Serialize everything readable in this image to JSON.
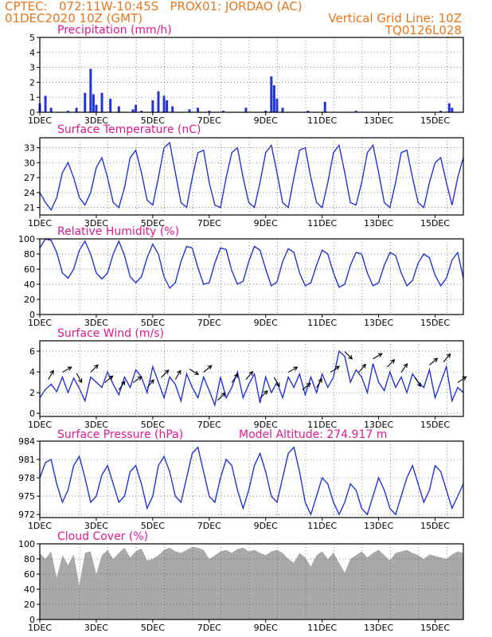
{
  "header": {
    "line1": "CPTEC:   072:11W-10:45S   PROX01: JORDAO (AC)",
    "line2": "01DEC2020 10Z (GMT)",
    "vgrid": "Vertical Grid Line: 10Z",
    "code": "TQ0126L028"
  },
  "colors": {
    "header": "#e8761c",
    "title": "#e0198f",
    "line": "#2233dd",
    "cloud": "#a9a9a9"
  },
  "chart_data": [
    {
      "type": "bar",
      "title": "Precipitation  (mm/h)",
      "x": [
        1.0,
        1.2,
        1.4,
        2.0,
        2.3,
        2.6,
        2.8,
        2.9,
        3.0,
        3.2,
        3.5,
        3.8,
        4.3,
        4.4,
        4.6,
        5.0,
        5.2,
        5.4,
        5.5,
        5.7,
        6.3,
        6.6,
        7.0,
        7.5,
        8.3,
        9.0,
        9.2,
        9.3,
        9.4,
        9.6,
        10.5,
        11.1,
        12.2,
        15.2,
        15.5,
        15.6
      ],
      "values": [
        0.6,
        1.1,
        0.3,
        0.1,
        0.3,
        1.3,
        2.9,
        1.2,
        0.5,
        1.3,
        0.9,
        0.4,
        0.2,
        0.5,
        0.1,
        0.8,
        1.4,
        1.1,
        0.8,
        0.4,
        0.2,
        0.3,
        0.1,
        0.1,
        0.3,
        0.1,
        2.4,
        1.8,
        0.9,
        0.3,
        0.1,
        0.7,
        0.1,
        0.1,
        0.6,
        0.3
      ],
      "yticks": [
        0,
        1,
        2,
        3,
        4,
        5
      ],
      "ylim": [
        0,
        5
      ]
    },
    {
      "type": "line",
      "title": "Surface Temperature (nC)",
      "x": [
        1.0,
        1.2,
        1.4,
        1.6,
        1.8,
        2.0,
        2.2,
        2.4,
        2.6,
        2.8,
        3.0,
        3.2,
        3.4,
        3.6,
        3.8,
        4.0,
        4.2,
        4.4,
        4.6,
        4.8,
        5.0,
        5.2,
        5.4,
        5.6,
        5.8,
        6.0,
        6.2,
        6.4,
        6.6,
        6.8,
        7.0,
        7.2,
        7.4,
        7.6,
        7.8,
        8.0,
        8.2,
        8.4,
        8.6,
        8.8,
        9.0,
        9.2,
        9.4,
        9.6,
        9.8,
        10.0,
        10.2,
        10.4,
        10.6,
        10.8,
        11.0,
        11.2,
        11.4,
        11.6,
        11.8,
        12.0,
        12.2,
        12.4,
        12.6,
        12.8,
        13.0,
        13.2,
        13.4,
        13.6,
        13.8,
        14.0,
        14.2,
        14.4,
        14.6,
        14.8,
        15.0,
        15.2,
        15.4,
        15.6,
        15.8,
        16.0
      ],
      "values": [
        24,
        22,
        20.5,
        23,
        28,
        30,
        27,
        23,
        21.5,
        24,
        29,
        31,
        27,
        22,
        21,
        25,
        31,
        32.5,
        28,
        22.5,
        21.5,
        27,
        33,
        34,
        28,
        22,
        21,
        27,
        32,
        32.5,
        26,
        21.5,
        21,
        27,
        32,
        33,
        27,
        22,
        21,
        26,
        32,
        33.5,
        28,
        22,
        21,
        27,
        32.5,
        33,
        27,
        22,
        21,
        26,
        32,
        33.5,
        28,
        22,
        21.5,
        26,
        32,
        33.5,
        28,
        22,
        21,
        26,
        32,
        32.5,
        27,
        22,
        21,
        26,
        30,
        31,
        26,
        21.5,
        27,
        31
      ],
      "yticks": [
        21,
        24,
        27,
        30,
        33
      ],
      "ylim": [
        19.5,
        35
      ]
    },
    {
      "type": "line",
      "title": "Relative Humidity (%)",
      "x": [
        1.0,
        1.2,
        1.4,
        1.6,
        1.8,
        2.0,
        2.2,
        2.4,
        2.6,
        2.8,
        3.0,
        3.2,
        3.4,
        3.6,
        3.8,
        4.0,
        4.2,
        4.4,
        4.6,
        4.8,
        5.0,
        5.2,
        5.4,
        5.6,
        5.8,
        6.0,
        6.2,
        6.4,
        6.6,
        6.8,
        7.0,
        7.2,
        7.4,
        7.6,
        7.8,
        8.0,
        8.2,
        8.4,
        8.6,
        8.8,
        9.0,
        9.2,
        9.4,
        9.6,
        9.8,
        10.0,
        10.2,
        10.4,
        10.6,
        10.8,
        11.0,
        11.2,
        11.4,
        11.6,
        11.8,
        12.0,
        12.2,
        12.4,
        12.6,
        12.8,
        13.0,
        13.2,
        13.4,
        13.6,
        13.8,
        14.0,
        14.2,
        14.4,
        14.6,
        14.8,
        15.0,
        15.2,
        15.4,
        15.6,
        15.8,
        16.0
      ],
      "values": [
        88,
        100,
        98,
        82,
        55,
        48,
        60,
        85,
        97,
        80,
        55,
        47,
        55,
        80,
        97,
        78,
        50,
        42,
        50,
        75,
        93,
        80,
        50,
        35,
        42,
        70,
        90,
        88,
        62,
        40,
        42,
        68,
        88,
        86,
        58,
        40,
        44,
        70,
        90,
        85,
        60,
        38,
        43,
        70,
        87,
        82,
        55,
        38,
        42,
        65,
        85,
        80,
        55,
        36,
        40,
        65,
        82,
        80,
        55,
        38,
        42,
        65,
        82,
        78,
        55,
        38,
        45,
        68,
        80,
        75,
        52,
        38,
        48,
        72,
        82,
        48
      ],
      "yticks": [
        0,
        20,
        40,
        60,
        80,
        100
      ],
      "ylim": [
        0,
        100
      ]
    },
    {
      "type": "line",
      "title": "Surface Wind (m/s)",
      "x": [
        1.0,
        1.2,
        1.4,
        1.6,
        1.8,
        2.0,
        2.2,
        2.4,
        2.6,
        2.8,
        3.0,
        3.2,
        3.4,
        3.6,
        3.8,
        4.0,
        4.2,
        4.4,
        4.6,
        4.8,
        5.0,
        5.2,
        5.4,
        5.6,
        5.8,
        6.0,
        6.2,
        6.4,
        6.6,
        6.8,
        7.0,
        7.2,
        7.4,
        7.6,
        7.8,
        8.0,
        8.2,
        8.4,
        8.6,
        8.8,
        9.0,
        9.2,
        9.4,
        9.6,
        9.8,
        10.0,
        10.2,
        10.4,
        10.6,
        10.8,
        11.0,
        11.2,
        11.4,
        11.6,
        11.8,
        12.0,
        12.2,
        12.4,
        12.6,
        12.8,
        13.0,
        13.2,
        13.4,
        13.6,
        13.8,
        14.0,
        14.2,
        14.4,
        14.6,
        14.8,
        15.0,
        15.2,
        15.4,
        15.6,
        15.8,
        16.0
      ],
      "values": [
        1.5,
        2.3,
        2.8,
        2.1,
        3.5,
        2.0,
        3.4,
        2.4,
        1.2,
        3.5,
        3.0,
        2.5,
        4.0,
        2.8,
        1.8,
        3.5,
        2.5,
        4.2,
        3.5,
        2.0,
        4.5,
        3.0,
        1.5,
        3.5,
        2.8,
        1.2,
        3.8,
        2.5,
        1.5,
        3.5,
        2.2,
        0.8,
        3.5,
        1.5,
        2.5,
        4.0,
        1.5,
        2.8,
        3.8,
        1.0,
        3.5,
        2.0,
        3.0,
        1.5,
        3.5,
        2.5,
        3.8,
        1.8,
        3.5,
        2.0,
        3.8,
        2.5,
        3.5,
        6.0,
        5.5,
        3.0,
        4.2,
        3.5,
        2.0,
        4.8,
        3.0,
        2.2,
        4.0,
        2.5,
        3.5,
        2.0,
        3.8,
        3.0,
        2.5,
        4.2,
        1.5,
        3.0,
        4.5,
        1.2,
        2.5,
        2.0
      ],
      "yticks": [
        0,
        2,
        4,
        6
      ],
      "ylim": [
        -0.3,
        7
      ]
    },
    {
      "type": "line",
      "title": "Surface Pressure (hPa)",
      "annotation": "Model Altitude: 274.917 m",
      "x": [
        1.0,
        1.2,
        1.4,
        1.6,
        1.8,
        2.0,
        2.2,
        2.4,
        2.6,
        2.8,
        3.0,
        3.2,
        3.4,
        3.6,
        3.8,
        4.0,
        4.2,
        4.4,
        4.6,
        4.8,
        5.0,
        5.2,
        5.4,
        5.6,
        5.8,
        6.0,
        6.2,
        6.4,
        6.6,
        6.8,
        7.0,
        7.2,
        7.4,
        7.6,
        7.8,
        8.0,
        8.2,
        8.4,
        8.6,
        8.8,
        9.0,
        9.2,
        9.4,
        9.6,
        9.8,
        10.0,
        10.2,
        10.4,
        10.6,
        10.8,
        11.0,
        11.2,
        11.4,
        11.6,
        11.8,
        12.0,
        12.2,
        12.4,
        12.6,
        12.8,
        13.0,
        13.2,
        13.4,
        13.6,
        13.8,
        14.0,
        14.2,
        14.4,
        14.6,
        14.8,
        15.0,
        15.2,
        15.4,
        15.6,
        15.8,
        16.0
      ],
      "values": [
        978,
        980.5,
        981,
        977,
        974,
        976,
        980,
        981.5,
        978,
        974,
        975,
        978.5,
        980,
        977,
        974,
        975,
        979,
        980,
        977,
        973,
        975,
        980,
        981.5,
        979,
        975,
        974,
        978,
        982,
        983,
        979,
        975,
        974,
        978,
        981,
        980,
        976,
        973,
        976,
        980,
        982,
        979,
        975,
        974,
        978,
        982,
        983,
        979,
        974,
        972,
        975,
        978,
        977,
        974,
        972,
        974,
        977,
        976,
        973,
        972,
        975,
        978,
        976,
        973,
        972,
        975,
        978,
        980,
        977,
        974,
        976,
        980,
        979,
        976,
        973,
        975,
        977
      ],
      "yticks": [
        972,
        975,
        978,
        981,
        984
      ],
      "ylim": [
        971.5,
        984
      ]
    },
    {
      "type": "area",
      "title": "Cloud Cover (%)",
      "x": [
        1.0,
        1.2,
        1.4,
        1.6,
        1.8,
        2.0,
        2.2,
        2.4,
        2.6,
        2.8,
        3.0,
        3.2,
        3.4,
        3.6,
        3.8,
        4.0,
        4.2,
        4.4,
        4.6,
        4.8,
        5.0,
        5.2,
        5.4,
        5.6,
        5.8,
        6.0,
        6.2,
        6.4,
        6.6,
        6.8,
        7.0,
        7.2,
        7.4,
        7.6,
        7.8,
        8.0,
        8.2,
        8.4,
        8.6,
        8.8,
        9.0,
        9.2,
        9.4,
        9.6,
        9.8,
        10.0,
        10.2,
        10.4,
        10.6,
        10.8,
        11.0,
        11.2,
        11.4,
        11.6,
        11.8,
        12.0,
        12.2,
        12.4,
        12.6,
        12.8,
        13.0,
        13.2,
        13.4,
        13.6,
        13.8,
        14.0,
        14.2,
        14.4,
        14.6,
        14.8,
        15.0,
        15.2,
        15.4,
        15.6,
        15.8,
        16.0
      ],
      "values": [
        88,
        80,
        90,
        55,
        85,
        72,
        86,
        45,
        88,
        90,
        60,
        85,
        92,
        80,
        88,
        95,
        82,
        90,
        94,
        78,
        80,
        85,
        92,
        95,
        90,
        88,
        92,
        96,
        95,
        92,
        80,
        85,
        90,
        92,
        88,
        93,
        95,
        90,
        92,
        88,
        85,
        90,
        92,
        88,
        80,
        75,
        88,
        82,
        70,
        85,
        90,
        80,
        88,
        75,
        62,
        80,
        85,
        90,
        82,
        88,
        92,
        85,
        78,
        88,
        90,
        92,
        88,
        85,
        80,
        86,
        84,
        82,
        80,
        86,
        90,
        88
      ],
      "yticks": [
        0,
        20,
        40,
        60,
        80,
        100
      ],
      "ylim": [
        0,
        100
      ]
    }
  ],
  "x_tick_labels": [
    "1DEC",
    "3DEC",
    "5DEC",
    "7DEC",
    "9DEC",
    "11DEC",
    "13DEC",
    "15DEC"
  ],
  "x_tick_values": [
    1,
    3,
    5,
    7,
    9,
    11,
    13,
    15
  ],
  "x_range": [
    1,
    16
  ]
}
